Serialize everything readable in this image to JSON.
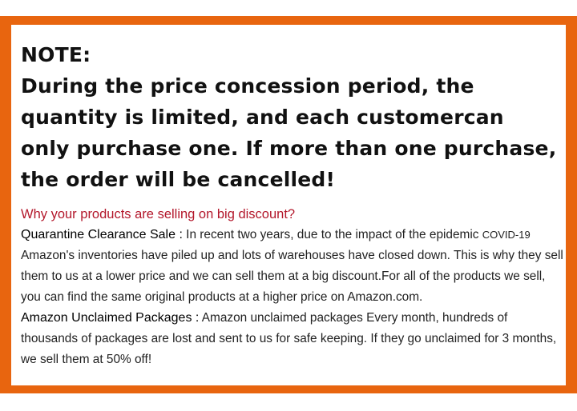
{
  "colors": {
    "border": "#e8650f",
    "question": "#b3172b"
  },
  "note": {
    "heading": "NOTE:",
    "text": "During the price concession period, the quantity is limited, and each customercan only purchase one. If more than one purchase, the order will be cancelled!"
  },
  "question": "Why your products are selling on big discount?",
  "quarantine": {
    "label": "Quarantine Clearance Sale  :",
    "text": " In recent two years, due to the impact of the epidemic ",
    "covid": "COVID-19",
    "text2": " Amazon's inventories have piled up and lots of warehouses have closed down. This is why they sell them to us at a lower price and we can sell them at a big discount.For all of the products we sell, you can find the same original products at a higher price on Amazon.com."
  },
  "unclaimed": {
    "label": "Amazon Unclaimed Packages  :",
    "text": " Amazon unclaimed packages   Every month, hundreds of thousands of packages are lost and sent to us for safe keeping. If they go unclaimed for 3 months, we sell them at 50% off!"
  }
}
